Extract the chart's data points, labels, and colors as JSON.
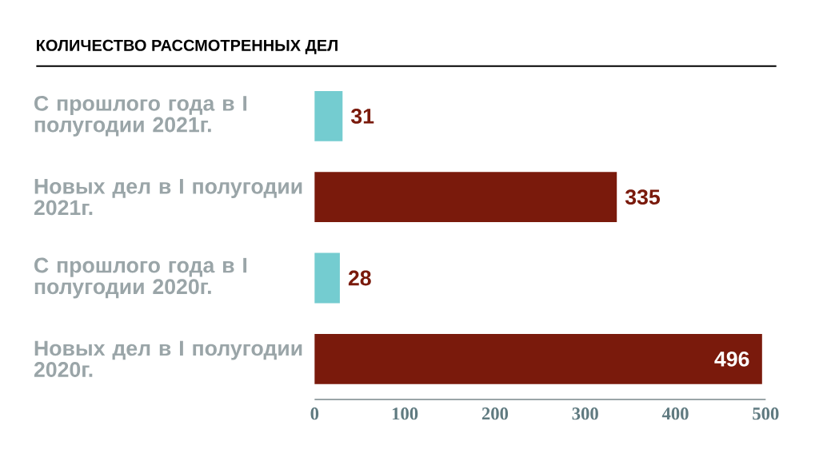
{
  "chart_data": {
    "type": "bar",
    "orientation": "horizontal",
    "title": "КОЛИЧЕСТВО РАССМОТРЕННЫХ ДЕЛ",
    "categories": [
      "С прошлого года в I полугодии 2021г.",
      "Новых дел в I полугодии 2021г.",
      "С прошлого года в I полугодии 2020г.",
      "Новых дел в I полугодии 2020г."
    ],
    "values": [
      31,
      335,
      28,
      496
    ],
    "colors": [
      "#74ccd0",
      "#7a1a0c",
      "#74ccd0",
      "#7a1a0c"
    ],
    "xlim": [
      0,
      500
    ],
    "xticks": [
      0,
      100,
      200,
      300,
      400,
      500
    ],
    "data_labels": true
  }
}
